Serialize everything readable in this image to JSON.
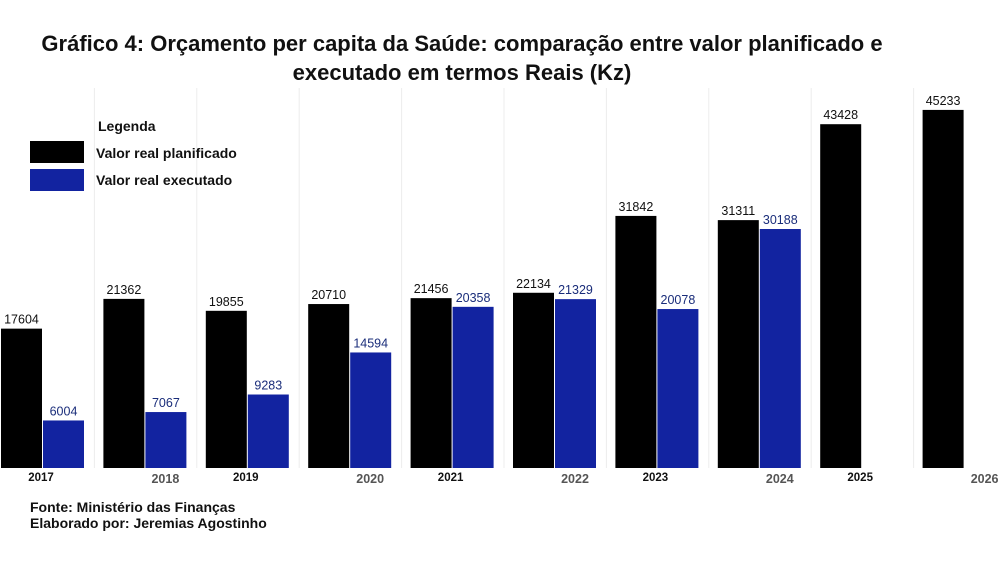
{
  "chart_data": {
    "type": "bar",
    "title_line1": "Gráfico 4: Orçamento per capita da Saúde: comparação entre valor planificado e",
    "title_line2": "executado em termos Reais (Kz)",
    "legend": {
      "title": "Legenda",
      "entries": [
        "Valor real planificado",
        "Valor real executado"
      ]
    },
    "categories": [
      "2017",
      "2018",
      "2019",
      "2020",
      "2021",
      "2022",
      "2023",
      "2024",
      "2025",
      "2026"
    ],
    "series": [
      {
        "name": "Valor real planificado",
        "color": "#000000",
        "values": [
          17604,
          21362,
          19855,
          20710,
          21456,
          22134,
          31842,
          31311,
          43428,
          45233
        ]
      },
      {
        "name": "Valor real executado",
        "color": "#1223a0",
        "values": [
          6004,
          7067,
          9283,
          14594,
          20358,
          21329,
          20078,
          30188,
          null,
          null
        ]
      }
    ],
    "ylim": [
      0,
      48000
    ],
    "grid": false,
    "legend_position": "top-left"
  },
  "footer": {
    "source": "Fonte: Ministério das Finanças",
    "author": "Elaborado por: Jeremias Agostinho"
  }
}
